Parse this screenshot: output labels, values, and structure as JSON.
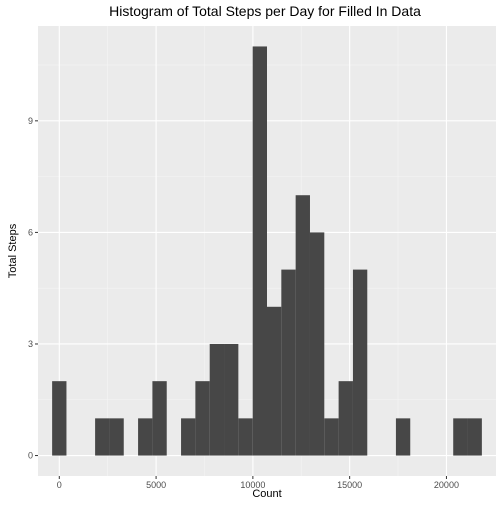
{
  "chart_data": {
    "type": "bar",
    "title": "Histogram of Total Steps per Day for Filled In Data",
    "xlabel": "Count",
    "ylabel": "Total Steps",
    "bins": [
      {
        "x_start": -370,
        "x_end": 370,
        "count": 2
      },
      {
        "x_start": 1850,
        "x_end": 2590,
        "count": 1
      },
      {
        "x_start": 2590,
        "x_end": 3330,
        "count": 1
      },
      {
        "x_start": 4070,
        "x_end": 4810,
        "count": 1
      },
      {
        "x_start": 4810,
        "x_end": 5550,
        "count": 2
      },
      {
        "x_start": 6290,
        "x_end": 7030,
        "count": 1
      },
      {
        "x_start": 7030,
        "x_end": 7770,
        "count": 2
      },
      {
        "x_start": 7770,
        "x_end": 8510,
        "count": 3
      },
      {
        "x_start": 8510,
        "x_end": 9250,
        "count": 3
      },
      {
        "x_start": 9250,
        "x_end": 9990,
        "count": 1
      },
      {
        "x_start": 9990,
        "x_end": 10730,
        "count": 11
      },
      {
        "x_start": 10730,
        "x_end": 11470,
        "count": 4
      },
      {
        "x_start": 11470,
        "x_end": 12210,
        "count": 5
      },
      {
        "x_start": 12210,
        "x_end": 12950,
        "count": 7
      },
      {
        "x_start": 12950,
        "x_end": 13690,
        "count": 6
      },
      {
        "x_start": 13690,
        "x_end": 14430,
        "count": 1
      },
      {
        "x_start": 14430,
        "x_end": 15170,
        "count": 2
      },
      {
        "x_start": 15170,
        "x_end": 15910,
        "count": 5
      },
      {
        "x_start": 17390,
        "x_end": 18130,
        "count": 1
      },
      {
        "x_start": 20350,
        "x_end": 21090,
        "count": 1
      },
      {
        "x_start": 21090,
        "x_end": 21830,
        "count": 1
      }
    ],
    "xlim": [
      -1100,
      22560
    ],
    "ylim": [
      -0.55,
      11.55
    ],
    "x_ticks": [
      0,
      5000,
      10000,
      15000,
      20000
    ],
    "x_tick_labels": [
      "0",
      "5000",
      "10000",
      "15000",
      "20000"
    ],
    "x_minor_ticks": [
      2500,
      7500,
      12500,
      17500
    ],
    "y_ticks": [
      0,
      3,
      6,
      9
    ],
    "y_tick_labels": [
      "0",
      "3",
      "6",
      "9"
    ],
    "y_minor_ticks": [
      1.5,
      4.5,
      7.5,
      10.5
    ],
    "grid": true,
    "legend": "none",
    "colors": {
      "bar_fill": "#474747",
      "panel_background": "#ebebeb",
      "grid_major": "#ffffff",
      "grid_minor": "#f5f5f5",
      "tick_mark": "#333333",
      "tick_label": "#4d4d4d"
    }
  }
}
